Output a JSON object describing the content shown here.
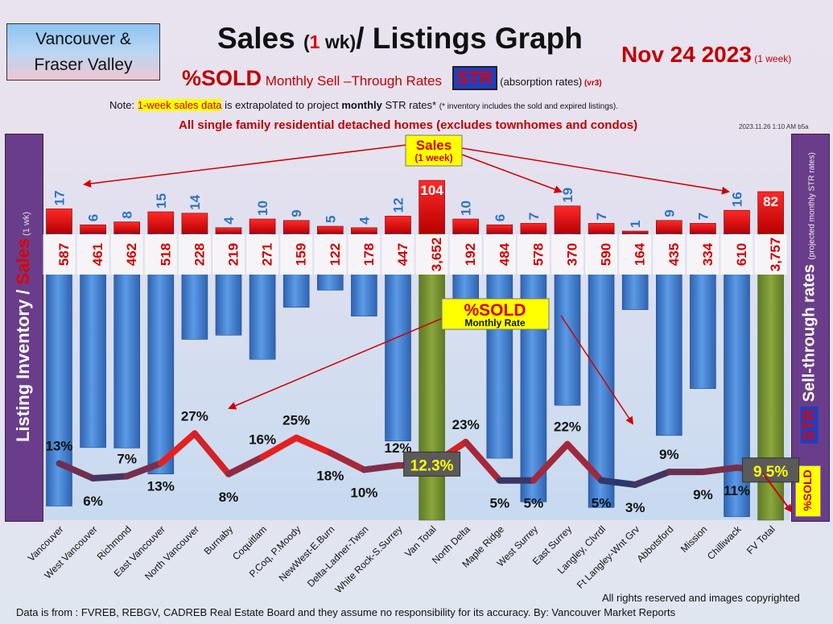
{
  "header": {
    "region_line1": "Vancouver &",
    "region_line2": "Fraser Valley",
    "title_part1": "Sales ",
    "title_paren_open": "(",
    "title_one": "1",
    "title_wk": " wk)",
    "title_part2": "/ Listings Graph",
    "date": "Nov 24  2023",
    "date_week": " (1 week)",
    "subtitle_pct": "%SOLD",
    "subtitle_mid": " Monthly Sell –Through Rates ",
    "subtitle_str": "STR",
    "subtitle_abs": " (absorption rates)",
    "subtitle_ver": " (vr3)",
    "note_prefix": "Note: ",
    "note_highlight": "1-week sales data",
    "note_mid": " is extrapolated to project ",
    "note_monthly": "monthly",
    "note_end": " STR rates* ",
    "note_tiny": "(* inventory includes the sold and expired listings).",
    "scope": "All single family residential detached homes (excludes townhomes and condos)",
    "timestamp": "2023.11.26 1:10 AM b5a"
  },
  "left_panel": {
    "listing": "Listing Inventory / ",
    "sales": "Sales",
    "wk": " (1 wk)"
  },
  "right_panel": {
    "pct": "%SOLD ",
    "str": "STR",
    "rest": " Sell-through rates ",
    "note": "(projected monthly STR rates)"
  },
  "sold_badge": "%SOLD",
  "annotations": {
    "sales_label_1": "Sales",
    "sales_label_2": "(1 week)",
    "pctsold_label_1": "%SOLD",
    "pctsold_label_2": "Monthly Rate"
  },
  "footer": {
    "rights": "All rights reserved and  images copyrighted",
    "source": "Data is from : FVREB, REBGV, CADREB Real Estate Board and they assume no responsibility for its accuracy. By: Vancouver Market Reports"
  },
  "colors": {
    "listings_bar": "#3f7fd1",
    "total_bar": "#7a9632",
    "sales_bar": "#e00000",
    "sales_text": "#2a73c4",
    "listings_text": "#d00000",
    "line_high": "#e52020",
    "line_low": "#203a70"
  },
  "chart_data": {
    "type": "bar",
    "categories": [
      "Vancouver",
      "West Vancouver",
      "Richmond",
      "East Vancouver",
      "North Vancouver",
      "Burnaby",
      "Coquitlam",
      "P.Coq, P.Moody",
      "NewWest-E.Burn",
      "Delta-Ladner-Twsn",
      "White Rock-S.Surrey",
      "Van Total",
      "North Delta",
      "Maple Ridge",
      "West Surrey",
      "East Surrey",
      "Langley, Clvrdl",
      "Ft Langley-Wnt Grv",
      "Abbotsford",
      "Mission",
      "Chilliwack",
      "FV Total"
    ],
    "series": [
      {
        "name": "Sales",
        "values": [
          17,
          6,
          8,
          15,
          14,
          4,
          10,
          9,
          5,
          4,
          12,
          104,
          10,
          6,
          7,
          19,
          7,
          1,
          9,
          7,
          16,
          82
        ]
      },
      {
        "name": "Listing Inventory",
        "values": [
          587,
          461,
          462,
          518,
          228,
          219,
          271,
          159,
          122,
          178,
          447,
          3652,
          192,
          484,
          578,
          370,
          590,
          164,
          435,
          334,
          610,
          3757
        ]
      },
      {
        "name": "%SOLD",
        "values": [
          13,
          6,
          7,
          13,
          27,
          8,
          16,
          25,
          18,
          10,
          12,
          12.3,
          23,
          5,
          5,
          22,
          5,
          3,
          9,
          9,
          11,
          9.5
        ]
      }
    ],
    "pct_labels": [
      "13%",
      "6%",
      "7%",
      "13%",
      "27%",
      "8%",
      "16%",
      "25%",
      "18%",
      "10%",
      "12%",
      "12.3%",
      "23%",
      "5%",
      "5%",
      "22%",
      "5%",
      "3%",
      "9%",
      "9%",
      "11%",
      "9.5%"
    ],
    "sales_labels": [
      "17",
      "6",
      "8",
      "15",
      "14",
      "4",
      "10",
      "9",
      "5",
      "4",
      "12",
      "104",
      "10",
      "6",
      "7",
      "19",
      "7",
      "1",
      "9",
      "7",
      "16",
      "82"
    ],
    "listing_labels": [
      "587",
      "461",
      "462",
      "518",
      "228",
      "219",
      "271",
      "159",
      "122",
      "178",
      "447",
      "3,652",
      "192",
      "484",
      "578",
      "370",
      "590",
      "164",
      "435",
      "334",
      "610",
      "3,757"
    ],
    "total_indices": [
      11,
      21
    ]
  }
}
